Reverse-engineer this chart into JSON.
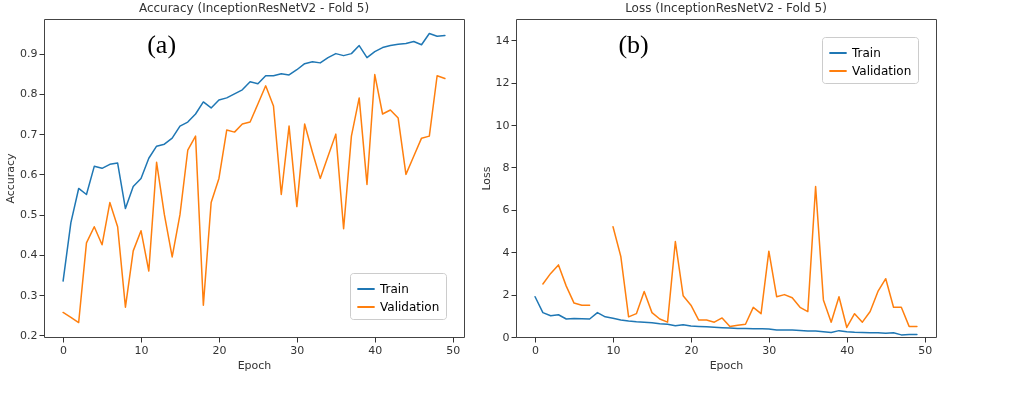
{
  "chart_data": [
    {
      "type": "line",
      "title": "Accuracy (InceptionResNetV2 - Fold 5)",
      "xlabel": "Epoch",
      "ylabel": "Accuracy",
      "annotations": [
        "(a)"
      ],
      "x": [
        0,
        1,
        2,
        3,
        4,
        5,
        6,
        7,
        8,
        9,
        10,
        11,
        12,
        13,
        14,
        15,
        16,
        17,
        18,
        19,
        20,
        21,
        22,
        23,
        24,
        25,
        26,
        27,
        28,
        29,
        30,
        31,
        32,
        33,
        34,
        35,
        36,
        37,
        38,
        39,
        40,
        41,
        42,
        43,
        44,
        45,
        46,
        47,
        48,
        49
      ],
      "series": [
        {
          "name": "Train",
          "color": "#1f77b4",
          "values": [
            0.335,
            0.48,
            0.565,
            0.55,
            0.62,
            0.615,
            0.625,
            0.628,
            0.515,
            0.57,
            0.59,
            0.64,
            0.67,
            0.675,
            0.69,
            0.72,
            0.73,
            0.75,
            0.78,
            0.765,
            0.785,
            0.79,
            0.8,
            0.81,
            0.83,
            0.825,
            0.845,
            0.845,
            0.85,
            0.847,
            0.86,
            0.875,
            0.88,
            0.877,
            0.89,
            0.9,
            0.895,
            0.9,
            0.92,
            0.89,
            0.905,
            0.915,
            0.92,
            0.923,
            0.925,
            0.93,
            0.922,
            0.95,
            0.943,
            0.945
          ]
        },
        {
          "name": "Validation",
          "color": "#ff7f0e",
          "values": [
            0.257,
            0.245,
            0.232,
            0.43,
            0.47,
            0.425,
            0.53,
            0.47,
            0.27,
            0.41,
            0.46,
            0.36,
            0.63,
            0.5,
            0.395,
            0.5,
            0.66,
            0.695,
            0.275,
            0.53,
            0.59,
            0.71,
            0.705,
            0.725,
            0.73,
            0.775,
            0.82,
            0.77,
            0.55,
            0.72,
            0.52,
            0.725,
            0.655,
            0.59,
            0.645,
            0.7,
            0.465,
            0.695,
            0.79,
            0.575,
            0.848,
            0.75,
            0.76,
            0.74,
            0.6,
            0.645,
            0.69,
            0.695,
            0.845,
            0.838
          ]
        }
      ],
      "xlim": [
        -2.45,
        51.45
      ],
      "xticks": [
        0,
        10,
        20,
        30,
        40,
        50
      ],
      "ylim": [
        0.196,
        0.986
      ],
      "yticks": [
        0.2,
        0.3,
        0.4,
        0.5,
        0.6,
        0.7,
        0.8,
        0.9
      ],
      "grid": false,
      "legend": "bottom right",
      "line_style": "solid"
    },
    {
      "type": "line",
      "title": "Loss (InceptionResNetV2 - Fold 5)",
      "xlabel": "Epoch",
      "ylabel": "Loss",
      "annotations": [
        "(b)"
      ],
      "x": [
        0,
        1,
        2,
        3,
        4,
        5,
        6,
        7,
        8,
        9,
        10,
        11,
        12,
        13,
        14,
        15,
        16,
        17,
        18,
        19,
        20,
        21,
        22,
        23,
        24,
        25,
        26,
        27,
        28,
        29,
        30,
        31,
        32,
        33,
        34,
        35,
        36,
        37,
        38,
        39,
        40,
        41,
        42,
        43,
        44,
        45,
        46,
        47,
        48,
        49
      ],
      "series": [
        {
          "name": "Train",
          "color": "#1f77b4",
          "values": [
            1.9,
            1.15,
            1.0,
            1.05,
            0.85,
            0.87,
            0.86,
            0.85,
            1.15,
            0.95,
            0.88,
            0.8,
            0.75,
            0.72,
            0.7,
            0.67,
            0.63,
            0.6,
            0.53,
            0.58,
            0.52,
            0.5,
            0.48,
            0.46,
            0.44,
            0.42,
            0.4,
            0.4,
            0.39,
            0.39,
            0.38,
            0.33,
            0.33,
            0.33,
            0.31,
            0.28,
            0.28,
            0.25,
            0.21,
            0.3,
            0.25,
            0.22,
            0.21,
            0.2,
            0.2,
            0.18,
            0.2,
            0.1,
            0.12,
            0.12
          ]
        },
        {
          "name": "Validation",
          "color": "#ff7f0e",
          "values": [
            null,
            2.5,
            3.0,
            3.4,
            2.4,
            1.6,
            1.5,
            1.5,
            null,
            null,
            5.2,
            3.8,
            0.95,
            1.1,
            2.15,
            1.15,
            0.85,
            0.7,
            4.5,
            1.95,
            1.5,
            0.8,
            0.8,
            0.7,
            0.9,
            0.5,
            0.55,
            0.6,
            1.4,
            1.1,
            4.05,
            1.9,
            2.0,
            1.85,
            1.4,
            1.2,
            7.1,
            1.75,
            0.7,
            1.9,
            0.45,
            1.1,
            0.7,
            1.2,
            2.15,
            2.75,
            1.4,
            1.4,
            0.5,
            0.5
          ]
        }
      ],
      "xlim": [
        -2.45,
        51.45
      ],
      "xticks": [
        0,
        10,
        20,
        30,
        40,
        50
      ],
      "ylim": [
        0,
        15
      ],
      "yticks": [
        0,
        2,
        4,
        6,
        8,
        10,
        12,
        14
      ],
      "grid": false,
      "legend": "top right",
      "line_style": "solid"
    }
  ]
}
